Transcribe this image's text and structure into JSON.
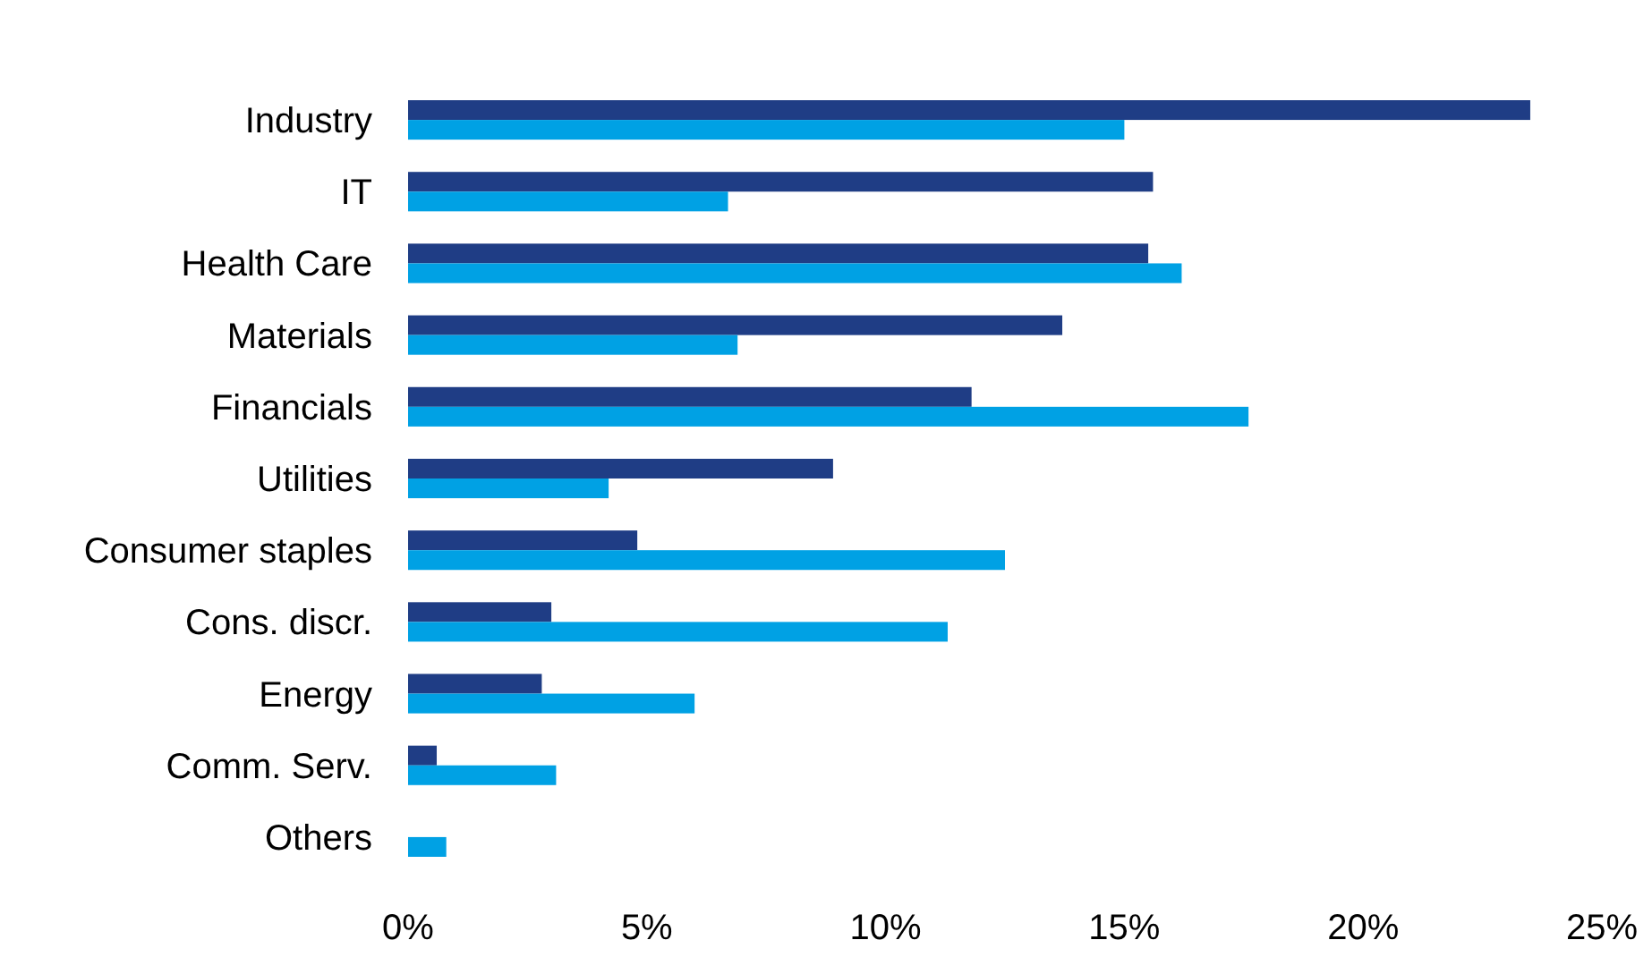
{
  "chart_data": {
    "type": "bar",
    "orientation": "horizontal",
    "categories": [
      "Industry",
      "IT",
      "Health Care",
      "Materials",
      "Financials",
      "Utilities",
      "Consumer staples",
      "Cons. discr.",
      "Energy",
      "Comm. Serv.",
      "Others"
    ],
    "series": [
      {
        "color": "#1f3d85",
        "values": [
          23.5,
          15.6,
          15.5,
          13.7,
          11.8,
          8.9,
          4.8,
          3.0,
          2.8,
          0.6,
          0
        ]
      },
      {
        "color": "#00a1e4",
        "values": [
          15.0,
          6.7,
          16.2,
          6.9,
          17.6,
          4.2,
          12.5,
          11.3,
          6.0,
          3.1,
          0.8
        ]
      }
    ],
    "xlim": [
      0,
      25
    ],
    "xticks": [
      {
        "value": 0,
        "label": "0%"
      },
      {
        "value": 5,
        "label": "5%"
      },
      {
        "value": 10,
        "label": "10%"
      },
      {
        "value": 15,
        "label": "15%"
      },
      {
        "value": 20,
        "label": "20%"
      },
      {
        "value": 25,
        "label": "25%"
      }
    ],
    "grid": false
  }
}
